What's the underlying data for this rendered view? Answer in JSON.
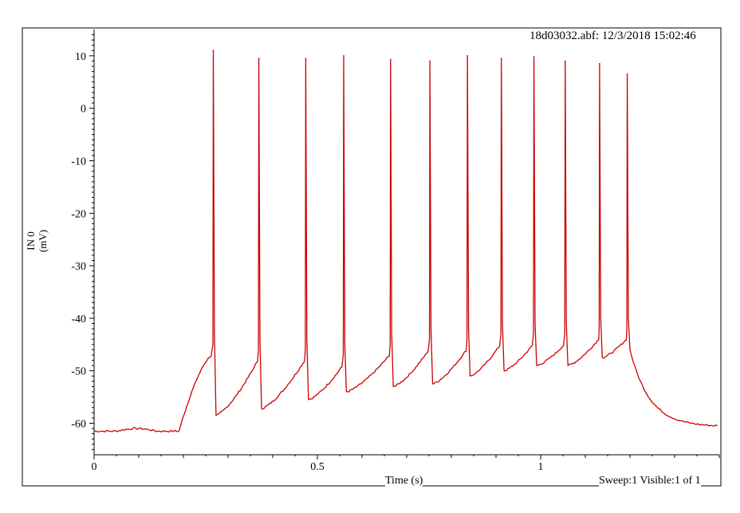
{
  "header": {
    "file_info": "18d03032.abf: 12/3/2018 15:02:46"
  },
  "footer": {
    "xlabel": "Time (s)",
    "sweep_info": "Sweep:1 Visible:1 of 1"
  },
  "chart_data": {
    "type": "line",
    "title": "",
    "xlabel": "Time (s)",
    "ylabel_line1": "IN 0",
    "ylabel_line2": "(mV)",
    "xlim": [
      0,
      1.4
    ],
    "ylim": [
      -66,
      15
    ],
    "x_ticks": [
      0,
      0.5,
      1
    ],
    "x_tick_labels": [
      "0",
      "0.5",
      "1"
    ],
    "y_ticks": [
      10,
      0,
      -10,
      -20,
      -30,
      -40,
      -50,
      -60
    ],
    "y_tick_labels": [
      "10",
      "0",
      "-10",
      "-20",
      "-30",
      "-40",
      "-50",
      "-60"
    ],
    "grid": false,
    "line_color": "#cc0000",
    "series": [
      {
        "resting_potential_mv": -61.5,
        "stimulus_onset_s": 0.19,
        "stimulus_offset_s": 1.2,
        "end_potential_mv": -60.5,
        "spikes": [
          {
            "t": 0.267,
            "peak": 11,
            "threshold": -47,
            "trough": -58.5
          },
          {
            "t": 0.369,
            "peak": 9.5,
            "threshold": -48,
            "trough": -57.2
          },
          {
            "t": 0.474,
            "peak": 9.5,
            "threshold": -48,
            "trough": -55.5
          },
          {
            "t": 0.559,
            "peak": 10,
            "threshold": -49,
            "trough": -54
          },
          {
            "t": 0.664,
            "peak": 9.3,
            "threshold": -47,
            "trough": -53
          },
          {
            "t": 0.752,
            "peak": 9,
            "threshold": -46,
            "trough": -52.5
          },
          {
            "t": 0.836,
            "peak": 10,
            "threshold": -46,
            "trough": -51
          },
          {
            "t": 0.912,
            "peak": 9.5,
            "threshold": -45,
            "trough": -50
          },
          {
            "t": 0.985,
            "peak": 9.8,
            "threshold": -45,
            "trough": -49
          },
          {
            "t": 1.055,
            "peak": 9,
            "threshold": -45,
            "trough": -49
          },
          {
            "t": 1.132,
            "peak": 8.5,
            "threshold": -44,
            "trough": -47.5
          },
          {
            "t": 1.194,
            "peak": 6.5,
            "threshold": -44,
            "trough": -46
          }
        ]
      }
    ]
  }
}
